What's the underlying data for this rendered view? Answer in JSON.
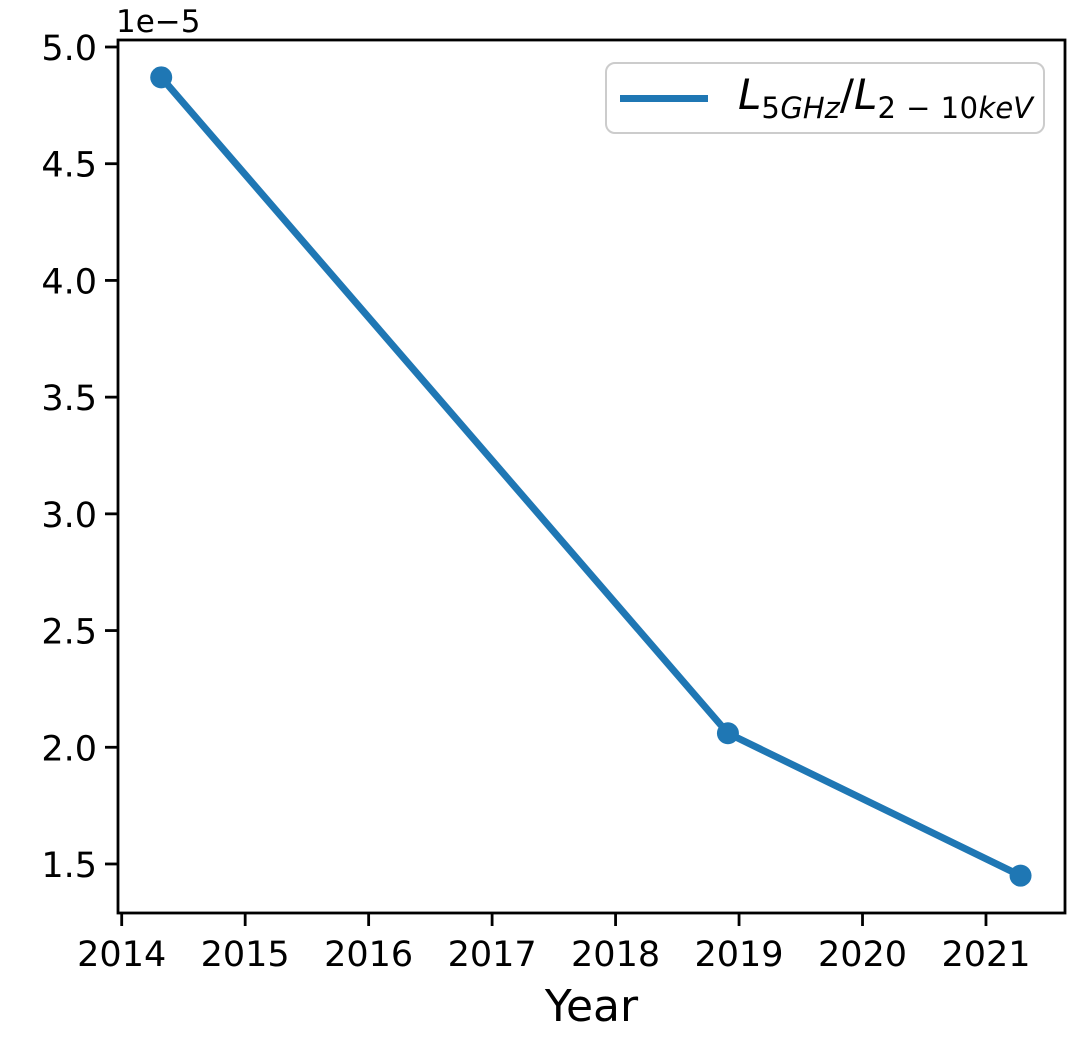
{
  "figure": {
    "background": "#ffffff",
    "text_color": "#000000",
    "spine_color": "#000000",
    "xlabel": "Year",
    "offset_text": "1e−5",
    "legend": {
      "label_plain": "L_5GHz / L_2−10keV",
      "border_color": "#cccccc",
      "parts": [
        {
          "text": "L",
          "style": "letter"
        },
        {
          "text": "5",
          "style": "sub-digit"
        },
        {
          "text": "GHz",
          "style": "sub-letter"
        },
        {
          "text": "/",
          "style": "plain"
        },
        {
          "text": "L",
          "style": "letter"
        },
        {
          "text": "2 − 10",
          "style": "sub-digit"
        },
        {
          "text": "keV",
          "style": "sub-letter"
        }
      ]
    }
  },
  "chart_data": {
    "type": "line",
    "title": "",
    "xlabel": "Year",
    "ylabel": "",
    "y_offset_label": "1e−5",
    "grid": false,
    "legend_position": "upper right",
    "xlim": [
      2013.97,
      2021.64
    ],
    "ylim": [
      1.29e-05,
      5.03e-05
    ],
    "x_ticks": [
      2014,
      2015,
      2016,
      2017,
      2018,
      2019,
      2020,
      2021
    ],
    "x_tick_labels": [
      "2014",
      "2015",
      "2016",
      "2017",
      "2018",
      "2019",
      "2020",
      "2021"
    ],
    "y_ticks": [
      1.5e-05,
      2e-05,
      2.5e-05,
      3e-05,
      3.5e-05,
      4e-05,
      4.5e-05,
      5e-05
    ],
    "y_tick_labels": [
      "1.5",
      "2.0",
      "2.5",
      "3.0",
      "3.5",
      "4.0",
      "4.5",
      "5.0"
    ],
    "series": [
      {
        "name": "L_5GHz/L_2−10keV",
        "x": [
          2014.32,
          2018.91,
          2021.28
        ],
        "y": [
          4.87e-05,
          2.06e-05,
          1.45e-05
        ],
        "color": "#1f77b4",
        "marker": "circle",
        "line_width": 7,
        "marker_radius": 11
      }
    ]
  }
}
